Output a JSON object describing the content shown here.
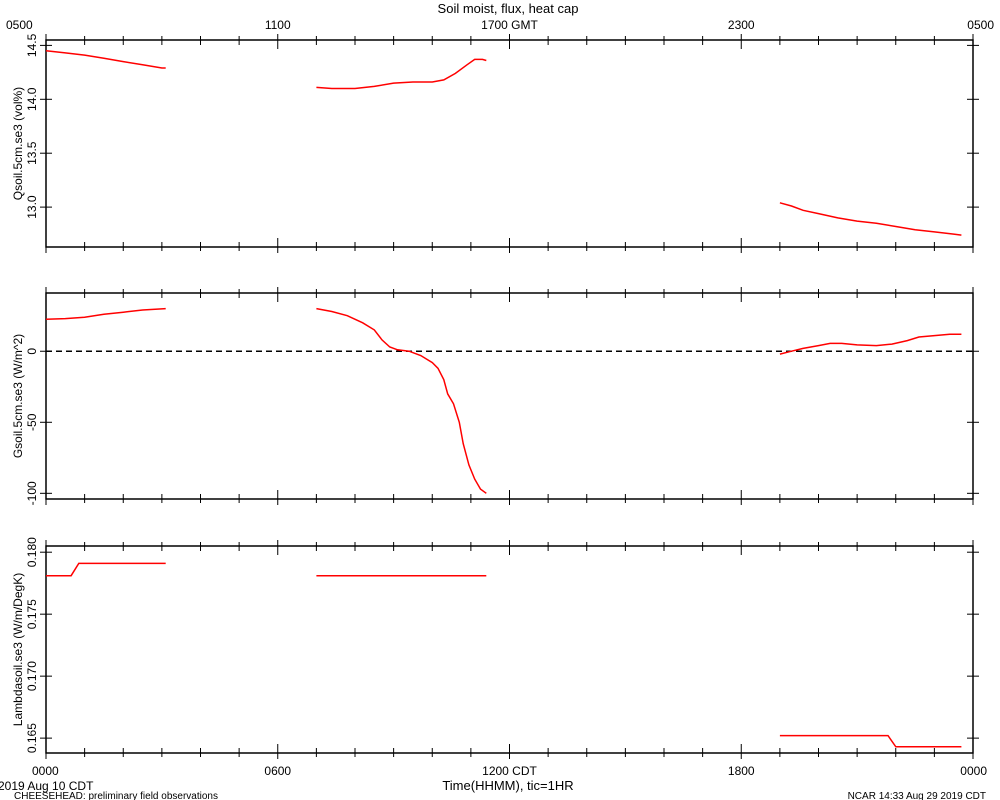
{
  "figure": {
    "title": "Soil moist, flux, heat cap",
    "top_axis_tick_labels": [
      "0500",
      "1100",
      "1700 GMT",
      "2300",
      "0500"
    ],
    "bottom_axis_tick_labels": [
      "0000",
      "0600",
      "1200 CDT",
      "1800",
      "0000"
    ],
    "xlabel": "Time(HHMM), tic=1HR",
    "date_label": "2019 Aug 10 CDT",
    "footer_left": "CHEESEHEAD: preliminary field observations",
    "footer_right": "NCAR 14:33 Aug 29 2019 CDT"
  },
  "colors": {
    "series": "#ff0000",
    "axes": "#000000"
  },
  "chart_data": [
    {
      "type": "line",
      "ylabel": "Qsoil.5cm.se3 (vol%)",
      "xlim": [
        0,
        24
      ],
      "ylim": [
        12.63,
        14.55
      ],
      "yticks": [
        13.0,
        13.5,
        14.0,
        14.5
      ],
      "ytick_labels": [
        "13.0",
        "13.5",
        "14.0",
        "14.5"
      ],
      "grid": false,
      "series": [
        {
          "segments": [
            [
              [
                0,
                14.45
              ],
              [
                0.5,
                14.43
              ],
              [
                1,
                14.41
              ],
              [
                1.5,
                14.38
              ],
              [
                2,
                14.35
              ],
              [
                2.5,
                14.32
              ],
              [
                3.0,
                14.29
              ],
              [
                3.1,
                14.29
              ]
            ],
            [
              [
                7.0,
                14.11
              ],
              [
                7.4,
                14.1
              ],
              [
                8.0,
                14.1
              ],
              [
                8.5,
                14.12
              ],
              [
                9.0,
                14.15
              ],
              [
                9.5,
                14.16
              ],
              [
                10.0,
                14.16
              ],
              [
                10.3,
                14.18
              ],
              [
                10.6,
                14.24
              ],
              [
                10.9,
                14.32
              ],
              [
                11.1,
                14.37
              ],
              [
                11.3,
                14.37
              ],
              [
                11.4,
                14.36
              ]
            ],
            [
              [
                19.0,
                13.04
              ],
              [
                19.3,
                13.01
              ],
              [
                19.6,
                12.97
              ],
              [
                20.0,
                12.94
              ],
              [
                20.5,
                12.9
              ],
              [
                21.0,
                12.87
              ],
              [
                21.5,
                12.85
              ],
              [
                22.0,
                12.82
              ],
              [
                22.5,
                12.79
              ],
              [
                23.0,
                12.77
              ],
              [
                23.5,
                12.75
              ],
              [
                23.7,
                12.74
              ]
            ]
          ]
        }
      ]
    },
    {
      "type": "line",
      "ylabel": "Gsoil.5cm.se3 (W/m^2)",
      "xlim": [
        0,
        24
      ],
      "ylim": [
        -104,
        41
      ],
      "yticks": [
        0,
        -50,
        -100
      ],
      "ytick_labels": [
        "0",
        "-50",
        "-100"
      ],
      "zero_line": true,
      "grid": false,
      "series": [
        {
          "segments": [
            [
              [
                0,
                22.5
              ],
              [
                0.5,
                23
              ],
              [
                1,
                24
              ],
              [
                1.5,
                26
              ],
              [
                2.0,
                27.5
              ],
              [
                2.5,
                29
              ],
              [
                3.1,
                30
              ]
            ],
            [
              [
                7.0,
                30
              ],
              [
                7.4,
                28
              ],
              [
                7.8,
                25
              ],
              [
                8.2,
                20
              ],
              [
                8.5,
                15
              ],
              [
                8.7,
                8
              ],
              [
                8.9,
                3
              ],
              [
                9.1,
                1
              ],
              [
                9.4,
                0
              ],
              [
                9.7,
                -3
              ],
              [
                10.0,
                -8
              ],
              [
                10.15,
                -12
              ],
              [
                10.3,
                -20
              ],
              [
                10.4,
                -30
              ],
              [
                10.55,
                -37
              ],
              [
                10.7,
                -50
              ],
              [
                10.8,
                -65
              ],
              [
                10.95,
                -80
              ],
              [
                11.1,
                -90
              ],
              [
                11.25,
                -97
              ],
              [
                11.4,
                -100
              ]
            ],
            [
              [
                19.0,
                -2
              ],
              [
                19.3,
                0
              ],
              [
                19.6,
                2
              ],
              [
                20.0,
                4
              ],
              [
                20.3,
                5.5
              ],
              [
                20.6,
                5.5
              ],
              [
                21.0,
                4.5
              ],
              [
                21.5,
                4
              ],
              [
                21.9,
                5
              ],
              [
                22.3,
                7.5
              ],
              [
                22.6,
                10
              ],
              [
                23.0,
                11
              ],
              [
                23.4,
                12
              ],
              [
                23.7,
                12
              ]
            ]
          ]
        }
      ]
    },
    {
      "type": "line",
      "ylabel": "Lambdasoil.se3 (W/m/DegK)",
      "xlim": [
        0,
        24
      ],
      "ylim": [
        0.1638,
        0.1805
      ],
      "yticks": [
        0.165,
        0.17,
        0.175,
        0.18
      ],
      "ytick_labels": [
        "0.165",
        "0.170",
        "0.175",
        "0.180"
      ],
      "grid": false,
      "series": [
        {
          "segments": [
            [
              [
                0,
                0.1781
              ],
              [
                0.65,
                0.1781
              ],
              [
                0.85,
                0.1791
              ],
              [
                3.1,
                0.1791
              ]
            ],
            [
              [
                7.0,
                0.1781
              ],
              [
                11.4,
                0.1781
              ]
            ],
            [
              [
                19.0,
                0.1652
              ],
              [
                21.8,
                0.1652
              ],
              [
                22.0,
                0.1643
              ],
              [
                23.7,
                0.1643
              ]
            ]
          ]
        }
      ]
    }
  ]
}
